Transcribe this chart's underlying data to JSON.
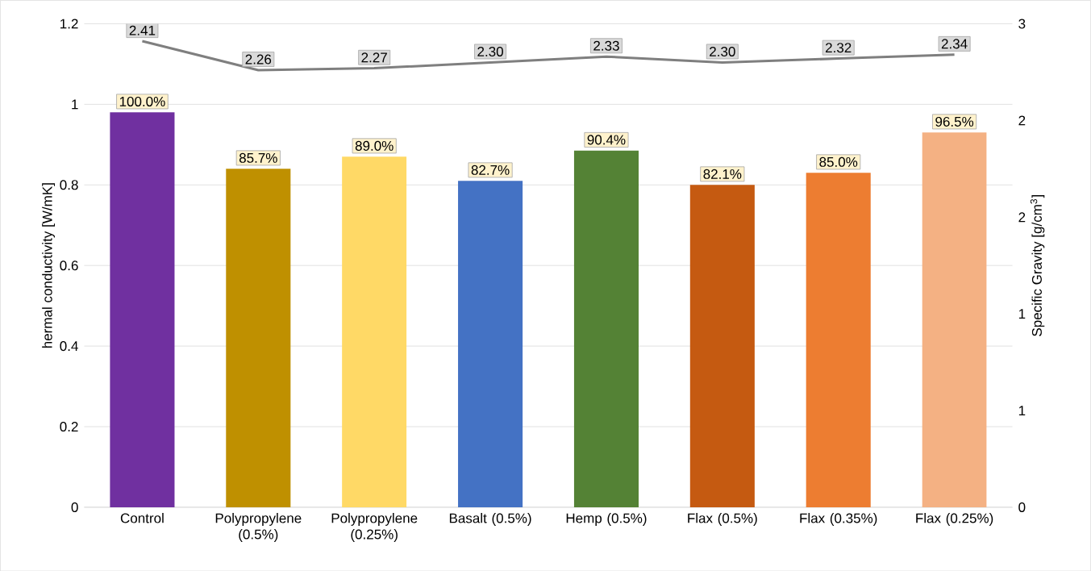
{
  "chart_data": {
    "type": "bar",
    "ylabel": "hermal conductivity [W/mK]",
    "y2label": "Specific Gravity [g/cm$^{3}$]",
    "categories": [
      "Control",
      "Polypropylene (0.5%)",
      "Polypropylene (0.25%)",
      "Basalt (0.5%)",
      "Hemp (0.5%)",
      "Flax  (0.5%)",
      "Flax (0.35%)",
      "Flax (0.25%)"
    ],
    "series": [
      {
        "colors": [
          "#7030a0",
          "#bf9000",
          "#ffd966",
          "#4472c4",
          "#548235",
          "#c55a11",
          "#ed7d31",
          "#f4b183"
        ],
        "values": [
          0.98,
          0.84,
          0.87,
          0.81,
          0.885,
          0.8,
          0.83,
          0.93
        ]
      },
      {
        "type": "line",
        "axis": "y2",
        "color": "#7f7f7f",
        "marker": "none",
        "values": [
          2.41,
          2.26,
          2.27,
          2.3,
          2.33,
          2.3,
          2.32,
          2.34
        ],
        "value_labels": [
          "2.41",
          "2.26",
          "2.27",
          "2.30",
          "2.33",
          "2.30",
          "2.32",
          "2.34"
        ]
      }
    ],
    "ylim": [
      0,
      1.2
    ],
    "yticks": [
      0,
      0.2,
      0.4,
      0.6,
      0.8,
      1,
      1.2
    ],
    "y2lim": [
      0,
      2.5
    ],
    "y2ticks": [
      0,
      {
        "value": 0.5,
        "label": "1"
      },
      1,
      {
        "value": 1.5,
        "label": "2"
      },
      2,
      {
        "value": 2.5,
        "label": "3"
      }
    ],
    "annotations": [
      {
        "text": "100.0%",
        "x": "Control",
        "y": 0.98
      },
      {
        "text": "85.7%",
        "x": "Polypropylene (0.5%)",
        "y": 0.84
      },
      {
        "text": "89.0%",
        "x": "Polypropylene (0.25%)",
        "y": 0.87
      },
      {
        "text": "82.7%",
        "x": "Basalt (0.5%)",
        "y": 0.81
      },
      {
        "text": "90.4%",
        "x": "Hemp (0.5%)",
        "y": 0.885
      },
      {
        "text": "82.1%",
        "x": "Flax  (0.5%)",
        "y": 0.8
      },
      {
        "text": "85.0%",
        "x": "Flax (0.35%)",
        "y": 0.83
      },
      {
        "text": "96.5%",
        "x": "Flax (0.25%)",
        "y": 0.93
      }
    ],
    "grid": "y"
  }
}
